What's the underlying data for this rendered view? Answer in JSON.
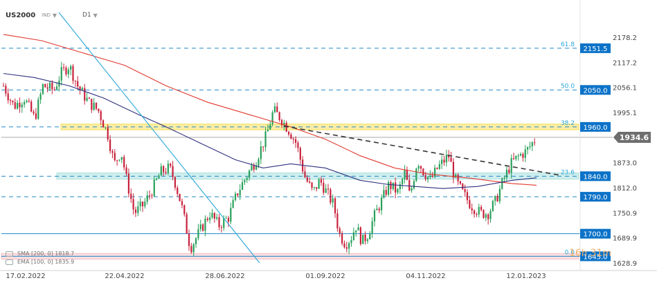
{
  "header": {
    "symbol": "US2000",
    "class_label": "IND",
    "timeframe": "D1"
  },
  "price_axis": {
    "ticks": [
      "2178.2",
      "2117.2",
      "2056.1",
      "1995.1",
      "1873.0",
      "1812.0",
      "1750.9",
      "1689.9",
      "1628.9"
    ]
  },
  "time_axis": {
    "labels": [
      "17.02.2022",
      "22.04.2022",
      "28.06.2022",
      "01.09.2022",
      "04.11.2022",
      "12.01.2023"
    ]
  },
  "levels": [
    {
      "price": 2151.5,
      "label": "2151.5",
      "fib": "61.8",
      "style": "dashed"
    },
    {
      "price": 2050.0,
      "label": "2050.0",
      "fib": "50.0",
      "style": "dashed"
    },
    {
      "price": 1960.0,
      "label": "1960.0",
      "fib": "38.2",
      "style": "dashed"
    },
    {
      "price": 1840.0,
      "label": "1840.0",
      "fib": "23.6",
      "style": "dashed"
    },
    {
      "price": 1790.0,
      "label": "1790.0",
      "fib": "",
      "style": "dashed"
    },
    {
      "price": 1700.0,
      "label": "1700.0",
      "fib": "",
      "style": "solid"
    },
    {
      "price": 1645.0,
      "label": "1645.0",
      "fib": "0.0",
      "style": "solid"
    }
  ],
  "zones": [
    {
      "from": 1953,
      "to": 1967,
      "color": "#f5de5c"
    },
    {
      "from": 1833,
      "to": 1848,
      "color": "#a8e0df"
    },
    {
      "from": 1638,
      "to": 1652,
      "color": "#f6c2c6"
    }
  ],
  "current_price": {
    "label": "1934.6",
    "value": 1934.6
  },
  "legend": {
    "sma": "SMA [200, 0] 1818.7",
    "ema": "EMA [100, 0] 1835.9"
  },
  "timer": {
    "hours": "16",
    "h_unit": "h",
    "minutes": "31",
    "m_unit": "m"
  },
  "colors": {
    "bull": "#27a058",
    "bear": "#c8213a",
    "sma": "#e0382d",
    "ema": "#2d2f7e",
    "fib": "#2aa6d9",
    "trendline": "#2aa6d9",
    "label_bg": "#0b72c8"
  }
}
